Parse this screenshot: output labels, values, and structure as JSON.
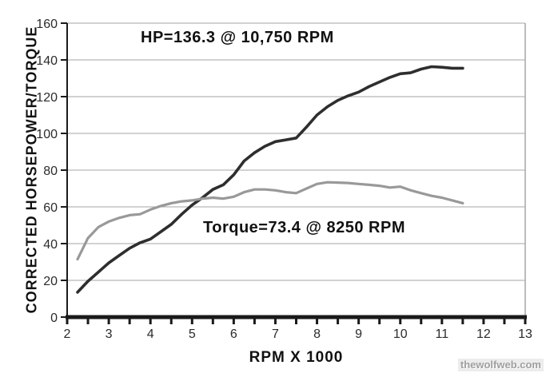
{
  "watermark": "thewolfweb.com",
  "chart_data": {
    "type": "line",
    "title": "",
    "xlabel": "RPM X 1000",
    "ylabel": "CORRECTED HORSEPOWER/TORQUE",
    "xlim": [
      2,
      13
    ],
    "ylim": [
      0,
      160
    ],
    "x_ticks": [
      2,
      3,
      4,
      5,
      6,
      7,
      8,
      9,
      10,
      11,
      12,
      13
    ],
    "x_minor_tick_step": 0.5,
    "y_ticks": [
      0,
      20,
      40,
      60,
      80,
      100,
      120,
      140,
      160
    ],
    "grid": "horizontal-gray",
    "legend_position": "none",
    "annotations": [
      {
        "id": "hp-peak",
        "text": "HP=136.3 @ 10,750 RPM"
      },
      {
        "id": "torque-peak",
        "text": "Torque=73.4 @ 8250 RPM"
      }
    ],
    "x": [
      2.25,
      2.5,
      2.75,
      3,
      3.25,
      3.5,
      3.75,
      4,
      4.25,
      4.5,
      4.75,
      5,
      5.25,
      5.5,
      5.75,
      6,
      6.25,
      6.5,
      6.75,
      7,
      7.25,
      7.5,
      7.75,
      8,
      8.25,
      8.5,
      8.75,
      9,
      9.25,
      9.5,
      9.75,
      10,
      10.25,
      10.5,
      10.75,
      11,
      11.25,
      11.5
    ],
    "series": [
      {
        "name": "Corrected Horsepower",
        "color": "#2e2e2e",
        "stroke_width": 3.6,
        "values": [
          13.5,
          19.5,
          24.5,
          29.5,
          33.5,
          37.5,
          40.5,
          42.5,
          46.5,
          50.5,
          56,
          61,
          65,
          69.5,
          72,
          77.5,
          85,
          89.5,
          93,
          95.5,
          96.5,
          97.5,
          103.5,
          110,
          114.5,
          118,
          120.5,
          122.5,
          125.5,
          128,
          130.5,
          132.5,
          133,
          135,
          136.3,
          136,
          135.5,
          135.5
        ]
      },
      {
        "name": "Corrected Torque",
        "color": "#999999",
        "stroke_width": 3.2,
        "values": [
          31.5,
          43,
          49,
          52,
          54,
          55.5,
          56,
          58.5,
          60.5,
          62,
          63,
          63.5,
          64.5,
          65,
          64.5,
          65.5,
          68,
          69.5,
          69.5,
          69,
          68,
          67.5,
          70,
          72.5,
          73.4,
          73.2,
          73,
          72.5,
          72,
          71.5,
          70.5,
          71,
          69,
          67.5,
          66,
          65,
          63.5,
          62
        ]
      }
    ],
    "axis_colors": {
      "axis_line": "#1a1a1a",
      "gridline": "#a6a6a6",
      "plot_right_border": "#a6a6a6",
      "tick_label": "#2b2b2b"
    }
  }
}
